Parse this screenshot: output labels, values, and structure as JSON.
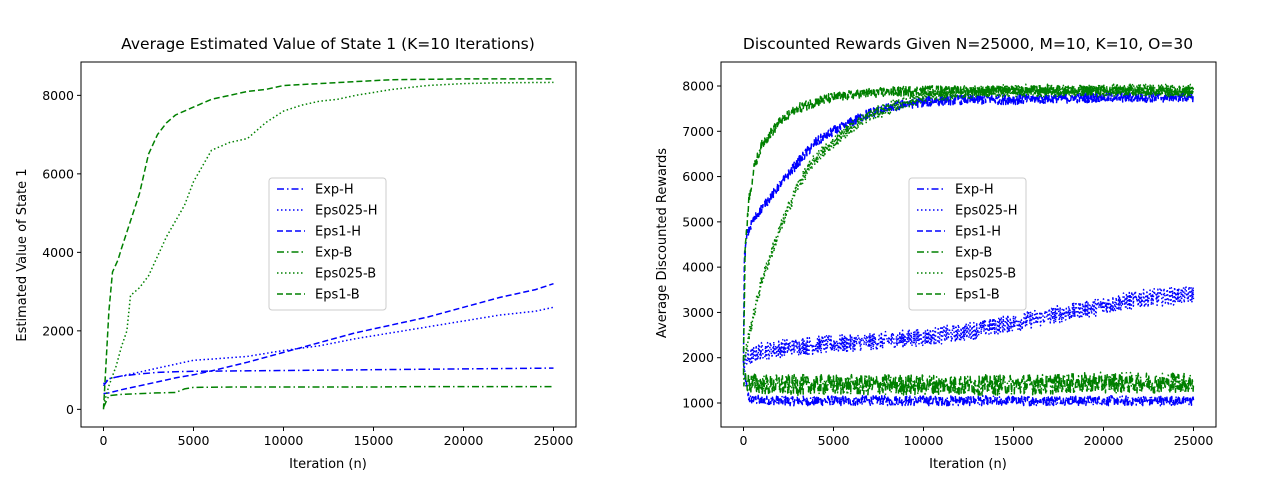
{
  "chart_data": [
    {
      "type": "line",
      "title": "Average Estimated Value of State 1 (K=10 Iterations)",
      "xlabel": "Iteration (n)",
      "ylabel": "Estimated Value of State 1",
      "xlim": [
        -1250,
        26250
      ],
      "ylim": [
        -450,
        8850
      ],
      "xticks": [
        0,
        5000,
        10000,
        15000,
        20000,
        25000
      ],
      "yticks": [
        0,
        2000,
        4000,
        6000,
        8000
      ],
      "grid": false,
      "legend_position": "center-right",
      "series": [
        {
          "name": "Exp-H",
          "color": "#0000ff",
          "style": "dashdot",
          "noise": 0,
          "x": [
            0,
            300,
            1000,
            2000,
            3000,
            4000,
            5000,
            7500,
            10000,
            12500,
            15000,
            17500,
            20000,
            22500,
            25000
          ],
          "y": [
            600,
            780,
            850,
            900,
            940,
            960,
            970,
            980,
            990,
            1000,
            1010,
            1020,
            1030,
            1040,
            1050
          ]
        },
        {
          "name": "Eps025-H",
          "color": "#0000ff",
          "style": "dotted",
          "noise": 0,
          "x": [
            0,
            300,
            1000,
            2000,
            3000,
            4000,
            5000,
            6000,
            8000,
            10000,
            12000,
            14000,
            16000,
            18000,
            20000,
            22000,
            24000,
            25000
          ],
          "y": [
            650,
            780,
            850,
            950,
            1050,
            1150,
            1250,
            1280,
            1350,
            1500,
            1620,
            1800,
            1950,
            2100,
            2250,
            2400,
            2500,
            2600
          ]
        },
        {
          "name": "Eps1-H",
          "color": "#0000ff",
          "style": "dashed",
          "noise": 0,
          "x": [
            0,
            300,
            1000,
            2000,
            3000,
            4000,
            5000,
            6000,
            8000,
            10000,
            12000,
            14000,
            16000,
            18000,
            20000,
            22000,
            24000,
            25000
          ],
          "y": [
            400,
            420,
            500,
            600,
            700,
            800,
            880,
            980,
            1200,
            1450,
            1700,
            1950,
            2150,
            2350,
            2600,
            2850,
            3050,
            3200
          ]
        },
        {
          "name": "Exp-B",
          "color": "#008000",
          "style": "dashdot",
          "noise": 0,
          "x": [
            0,
            300,
            1000,
            2000,
            3000,
            4000,
            4500,
            5000,
            7500,
            10000,
            12500,
            15000,
            17500,
            20000,
            22500,
            25000
          ],
          "y": [
            50,
            350,
            380,
            400,
            420,
            430,
            520,
            560,
            570,
            570,
            570,
            570,
            580,
            580,
            580,
            580
          ]
        },
        {
          "name": "Eps025-B",
          "color": "#008000",
          "style": "dotted",
          "noise": 0,
          "x": [
            0,
            300,
            700,
            1000,
            1300,
            1500,
            2000,
            2500,
            3000,
            3500,
            4000,
            4500,
            5000,
            5500,
            6000,
            7000,
            8000,
            9000,
            10000,
            11000,
            12000,
            13000,
            14000,
            16000,
            18000,
            20000,
            22000,
            25000
          ],
          "y": [
            100,
            600,
            1100,
            1600,
            2000,
            2900,
            3100,
            3400,
            3900,
            4400,
            4800,
            5200,
            5800,
            6200,
            6600,
            6800,
            6900,
            7300,
            7600,
            7750,
            7850,
            7900,
            8000,
            8150,
            8250,
            8300,
            8320,
            8330
          ]
        },
        {
          "name": "Eps1-B",
          "color": "#008000",
          "style": "dashed",
          "noise": 0,
          "x": [
            0,
            300,
            500,
            800,
            1000,
            1500,
            2000,
            2500,
            3000,
            3500,
            4000,
            5000,
            6000,
            7000,
            8000,
            9000,
            10000,
            12000,
            14000,
            16000,
            18000,
            20000,
            22000,
            25000
          ],
          "y": [
            0,
            2500,
            3500,
            3800,
            4100,
            4800,
            5500,
            6500,
            7000,
            7300,
            7500,
            7700,
            7900,
            8000,
            8100,
            8150,
            8250,
            8300,
            8350,
            8400,
            8410,
            8420,
            8420,
            8420
          ]
        }
      ]
    },
    {
      "type": "line",
      "title": "Discounted Rewards Given N=25000, M=10, K=10, O=30",
      "xlabel": "Iteration (n)",
      "ylabel": "Average Discounted Rewards",
      "xlim": [
        -1250,
        26250
      ],
      "ylim": [
        470,
        8530
      ],
      "xticks": [
        0,
        5000,
        10000,
        15000,
        20000,
        25000
      ],
      "yticks": [
        1000,
        2000,
        3000,
        4000,
        5000,
        6000,
        7000,
        8000
      ],
      "grid": false,
      "legend_position": "center",
      "series": [
        {
          "name": "Exp-H",
          "color": "#0000ff",
          "style": "dashdot",
          "noise": 110,
          "x": [
            0,
            100,
            300,
            1000,
            5000,
            10000,
            15000,
            20000,
            25000
          ],
          "y": [
            1900,
            1500,
            1100,
            1050,
            1050,
            1050,
            1050,
            1050,
            1050
          ]
        },
        {
          "name": "Eps025-H",
          "color": "#0000ff",
          "style": "dotted",
          "noise": 200,
          "x": [
            0,
            100,
            300,
            1000,
            3000,
            5000,
            7000,
            10000,
            12000,
            14000,
            16000,
            18000,
            20000,
            22000,
            25000
          ],
          "y": [
            1800,
            1900,
            2000,
            2150,
            2250,
            2300,
            2350,
            2450,
            2550,
            2700,
            2850,
            3000,
            3150,
            3300,
            3400
          ]
        },
        {
          "name": "Eps1-H",
          "color": "#0000ff",
          "style": "dashed",
          "noise": 110,
          "x": [
            0,
            50,
            200,
            500,
            1000,
            2000,
            3000,
            4000,
            5000,
            6000,
            7000,
            8000,
            9000,
            10000,
            12000,
            15000,
            20000,
            25000
          ],
          "y": [
            2000,
            4200,
            4700,
            5000,
            5300,
            5800,
            6300,
            6750,
            7000,
            7200,
            7400,
            7500,
            7600,
            7650,
            7700,
            7700,
            7750,
            7750
          ]
        },
        {
          "name": "Exp-B",
          "color": "#008000",
          "style": "dashdot",
          "noise": 230,
          "x": [
            0,
            200,
            1000,
            5000,
            10000,
            15000,
            20000,
            25000
          ],
          "y": [
            1600,
            1450,
            1400,
            1400,
            1400,
            1400,
            1450,
            1450
          ]
        },
        {
          "name": "Eps025-B",
          "color": "#008000",
          "style": "dotted",
          "noise": 140,
          "x": [
            0,
            300,
            1000,
            2000,
            3000,
            4000,
            5000,
            6000,
            7000,
            8000,
            9000,
            10000,
            12000,
            15000,
            20000,
            25000
          ],
          "y": [
            1800,
            2500,
            3700,
            4800,
            5800,
            6400,
            6750,
            7100,
            7350,
            7500,
            7650,
            7750,
            7850,
            7900,
            7900,
            7900
          ]
        },
        {
          "name": "Eps1-B",
          "color": "#008000",
          "style": "dashed",
          "noise": 110,
          "x": [
            0,
            100,
            300,
            600,
            1000,
            2000,
            3000,
            4000,
            5000,
            7000,
            10000,
            15000,
            20000,
            25000
          ],
          "y": [
            2000,
            4500,
            5500,
            6200,
            6700,
            7200,
            7500,
            7650,
            7750,
            7850,
            7900,
            7900,
            7900,
            7900
          ]
        }
      ]
    }
  ]
}
